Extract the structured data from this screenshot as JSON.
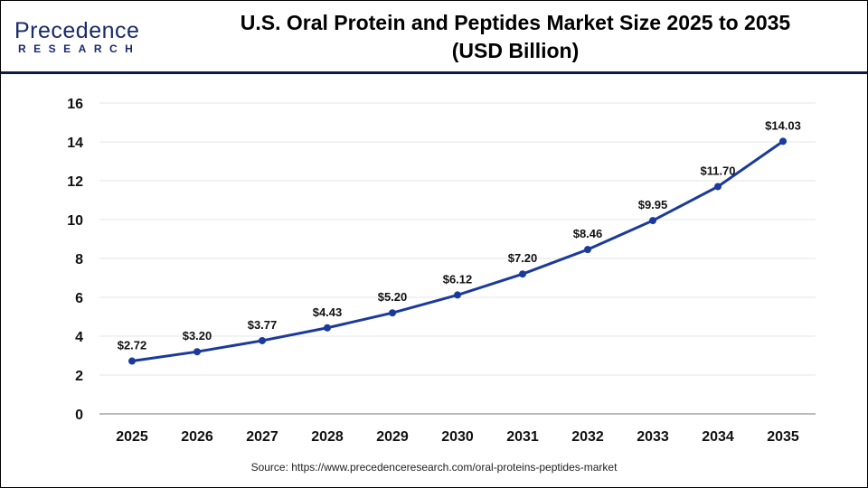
{
  "logo": {
    "line1": "Precedence",
    "line2": "RESEARCH"
  },
  "title_line1": "U.S. Oral Protein and Peptides Market Size 2025 to 2035",
  "title_line2": "(USD Billion)",
  "source": "Source: https://www.precedenceresearch.com/oral-proteins-peptides-market",
  "colors": {
    "line": "#1a3a9c",
    "header_rule": "#0f1b46",
    "grid": "#e6e6e6"
  },
  "chart_data": {
    "type": "line",
    "title": "U.S. Oral Protein and Peptides Market Size 2025 to 2035 (USD Billion)",
    "xlabel": "",
    "ylabel": "",
    "categories": [
      "2025",
      "2026",
      "2027",
      "2028",
      "2029",
      "2030",
      "2031",
      "2032",
      "2033",
      "2034",
      "2035"
    ],
    "values": [
      2.72,
      3.2,
      3.77,
      4.43,
      5.2,
      6.12,
      7.2,
      8.46,
      9.95,
      11.7,
      14.03
    ],
    "data_labels": [
      "$2.72",
      "$3.20",
      "$3.77",
      "$4.43",
      "$5.20",
      "$6.12",
      "$7.20",
      "$8.46",
      "$9.95",
      "$11.70",
      "$14.03"
    ],
    "ylim": [
      0,
      16
    ],
    "yticks": [
      "0",
      "2",
      "4",
      "6",
      "8",
      "10",
      "12",
      "14",
      "16"
    ],
    "grid": true,
    "legend": "none"
  }
}
